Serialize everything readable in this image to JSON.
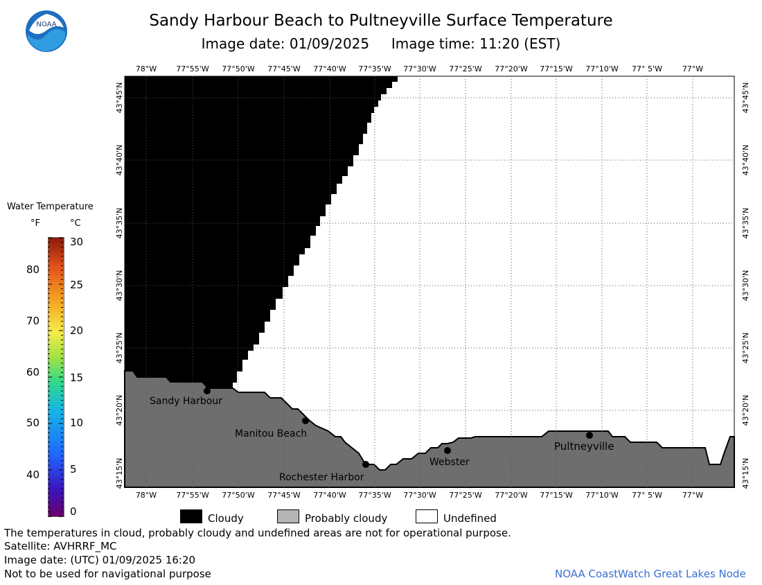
{
  "title": "Sandy Harbour Beach to Pultneyville Surface Temperature",
  "subtitle": "Image date: 01/09/2025     Image time: 11:20 (EST)",
  "logo_text": "NOAA",
  "longitude_labels": [
    "78°W",
    "77°55'W",
    "77°50'W",
    "77°45'W",
    "77°40'W",
    "77°35'W",
    "77°30'W",
    "77°25'W",
    "77°20'W",
    "77°15'W",
    "77°10'W",
    "77° 5'W",
    "77°W"
  ],
  "latitude_labels": [
    "43°45'N",
    "43°40'N",
    "43°35'N",
    "43°30'N",
    "43°25'N",
    "43°20'N",
    "43°15'N"
  ],
  "places": [
    {
      "name": "Sandy Harbour"
    },
    {
      "name": "Manitou Beach"
    },
    {
      "name": "Rochester Harbor"
    },
    {
      "name": "Webster"
    },
    {
      "name": "Pultneyville"
    }
  ],
  "legend": {
    "title": "Water Temperature",
    "unit_f": "°F",
    "unit_c": "°C",
    "f_ticks": [
      "80",
      "70",
      "60",
      "50",
      "40"
    ],
    "c_ticks": [
      "30",
      "25",
      "20",
      "15",
      "10",
      "5",
      "0"
    ]
  },
  "categories": [
    {
      "label": "Cloudy",
      "color": "#000000"
    },
    {
      "label": "Probably cloudy",
      "color": "#b4b4b4"
    },
    {
      "label": "Undefined",
      "color": "#ffffff"
    }
  ],
  "colors": {
    "land": "#6e6e6e",
    "cloud": "#000000",
    "grid": "#555555",
    "credit": "#3b6fd1"
  },
  "footer": {
    "disclaimer": "The temperatures in cloud, probably cloudy and undefined areas are not for operational purpose.",
    "satellite": "Satellite: AVHRRF_MC",
    "utc_date": "Image date: (UTC) 01/09/2025  16:20",
    "nav_warning": "Not to be used for navigational purpose",
    "credit": "NOAA CoastWatch Great Lakes Node"
  }
}
